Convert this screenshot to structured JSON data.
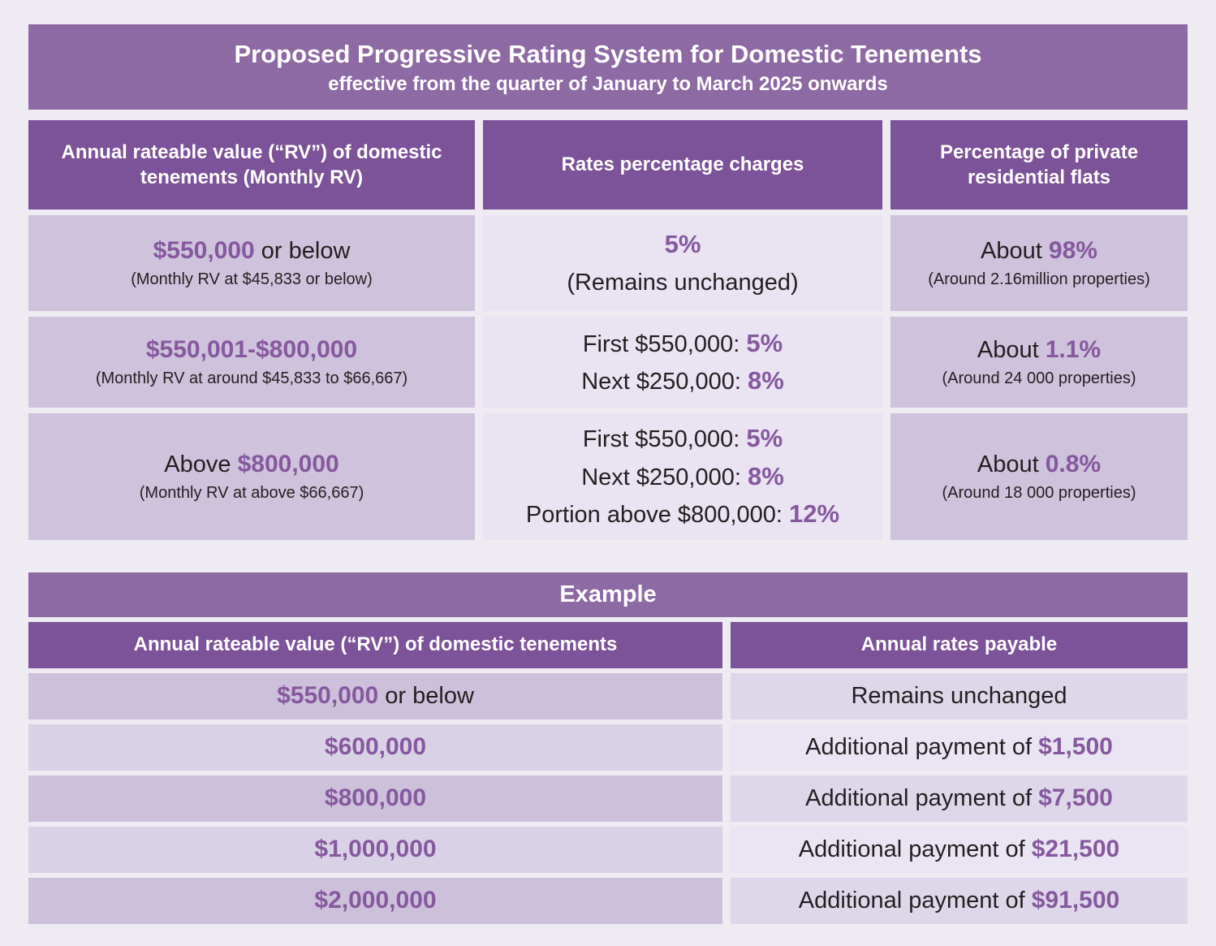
{
  "colors": {
    "page_bg": "#eeebf3",
    "title_bar_bg": "#8d6aa3",
    "column_header_bg": "#7c5298",
    "cell_medium_bg": "#cec2dc",
    "cell_light_bg": "#e9e3f2",
    "accent_purple": "#86589e",
    "dark_text": "#231f20",
    "header_text": "#ffffff"
  },
  "title": {
    "line1": "Proposed Progressive Rating System for Domestic Tenements",
    "line2": "effective from the quarter of January to March 2025 onwards"
  },
  "rating_table": {
    "headers": [
      "Annual rateable value (“RV”) of domestic tenements (Monthly RV)",
      "Rates percentage charges",
      "Percentage of private residential flats"
    ],
    "rows": [
      {
        "rv_prefix": "",
        "rv_accent": "$550,000",
        "rv_suffix": " or below",
        "rv_sub": "(Monthly RV at $45,833 or below)",
        "rate_lines": [
          {
            "prefix": "",
            "accent": "5%"
          },
          {
            "prefix": "(Remains unchanged)",
            "accent": ""
          }
        ],
        "share_prefix": "About ",
        "share_accent": "98%",
        "share_sub": "(Around 2.16million properties)"
      },
      {
        "rv_prefix": "",
        "rv_accent": "$550,001-$800,000",
        "rv_suffix": "",
        "rv_sub": "(Monthly RV at around $45,833 to $66,667)",
        "rate_lines": [
          {
            "prefix": "First $550,000: ",
            "accent": "5%"
          },
          {
            "prefix": "Next $250,000: ",
            "accent": "8%"
          }
        ],
        "share_prefix": "About ",
        "share_accent": "1.1%",
        "share_sub": "(Around 24 000 properties)"
      },
      {
        "rv_prefix": "Above ",
        "rv_accent": "$800,000",
        "rv_suffix": "",
        "rv_sub": "(Monthly RV at above $66,667)",
        "rate_lines": [
          {
            "prefix": "First $550,000: ",
            "accent": "5%"
          },
          {
            "prefix": "Next $250,000: ",
            "accent": "8%"
          },
          {
            "prefix": "Portion above $800,000: ",
            "accent": "12%"
          }
        ],
        "share_prefix": "About ",
        "share_accent": "0.8%",
        "share_sub": "(Around 18 000 properties)"
      }
    ]
  },
  "example": {
    "title": "Example",
    "headers": [
      "Annual rateable value (“RV”) of domestic tenements",
      "Annual rates payable"
    ],
    "rows": [
      {
        "rv_accent": "$550,000",
        "rv_suffix": " or below",
        "pay_prefix": "Remains unchanged",
        "pay_accent": ""
      },
      {
        "rv_accent": "$600,000",
        "rv_suffix": "",
        "pay_prefix": "Additional payment of ",
        "pay_accent": "$1,500"
      },
      {
        "rv_accent": "$800,000",
        "rv_suffix": "",
        "pay_prefix": "Additional payment of ",
        "pay_accent": "$7,500"
      },
      {
        "rv_accent": "$1,000,000",
        "rv_suffix": "",
        "pay_prefix": "Additional payment of ",
        "pay_accent": "$21,500"
      },
      {
        "rv_accent": "$2,000,000",
        "rv_suffix": "",
        "pay_prefix": "Additional payment of ",
        "pay_accent": "$91,500"
      }
    ]
  },
  "chart_data": [
    {
      "type": "table",
      "title": "Proposed Progressive Rating System for Domestic Tenements — effective from the quarter of January to March 2025 onwards",
      "columns": [
        "Annual rateable value (“RV”) of domestic tenements (Monthly RV)",
        "Rates percentage charges",
        "Percentage of private residential flats"
      ],
      "rows": [
        [
          "$550,000 or below (Monthly RV at $45,833 or below)",
          "5% (Remains unchanged)",
          "About 98% (Around 2.16million properties)"
        ],
        [
          "$550,001-$800,000 (Monthly RV at around $45,833 to $66,667)",
          "First $550,000: 5%; Next $250,000: 8%",
          "About 1.1% (Around 24 000 properties)"
        ],
        [
          "Above $800,000 (Monthly RV at above $66,667)",
          "First $550,000: 5%; Next $250,000: 8%; Portion above $800,000: 12%",
          "About 0.8% (Around 18 000 properties)"
        ]
      ]
    },
    {
      "type": "table",
      "title": "Example",
      "columns": [
        "Annual rateable value (“RV”) of domestic tenements",
        "Annual rates payable"
      ],
      "rows": [
        [
          "$550,000 or below",
          "Remains unchanged"
        ],
        [
          "$600,000",
          "Additional payment of $1,500"
        ],
        [
          "$800,000",
          "Additional payment of $7,500"
        ],
        [
          "$1,000,000",
          "Additional payment of $21,500"
        ],
        [
          "$2,000,000",
          "Additional payment of $91,500"
        ]
      ]
    }
  ]
}
